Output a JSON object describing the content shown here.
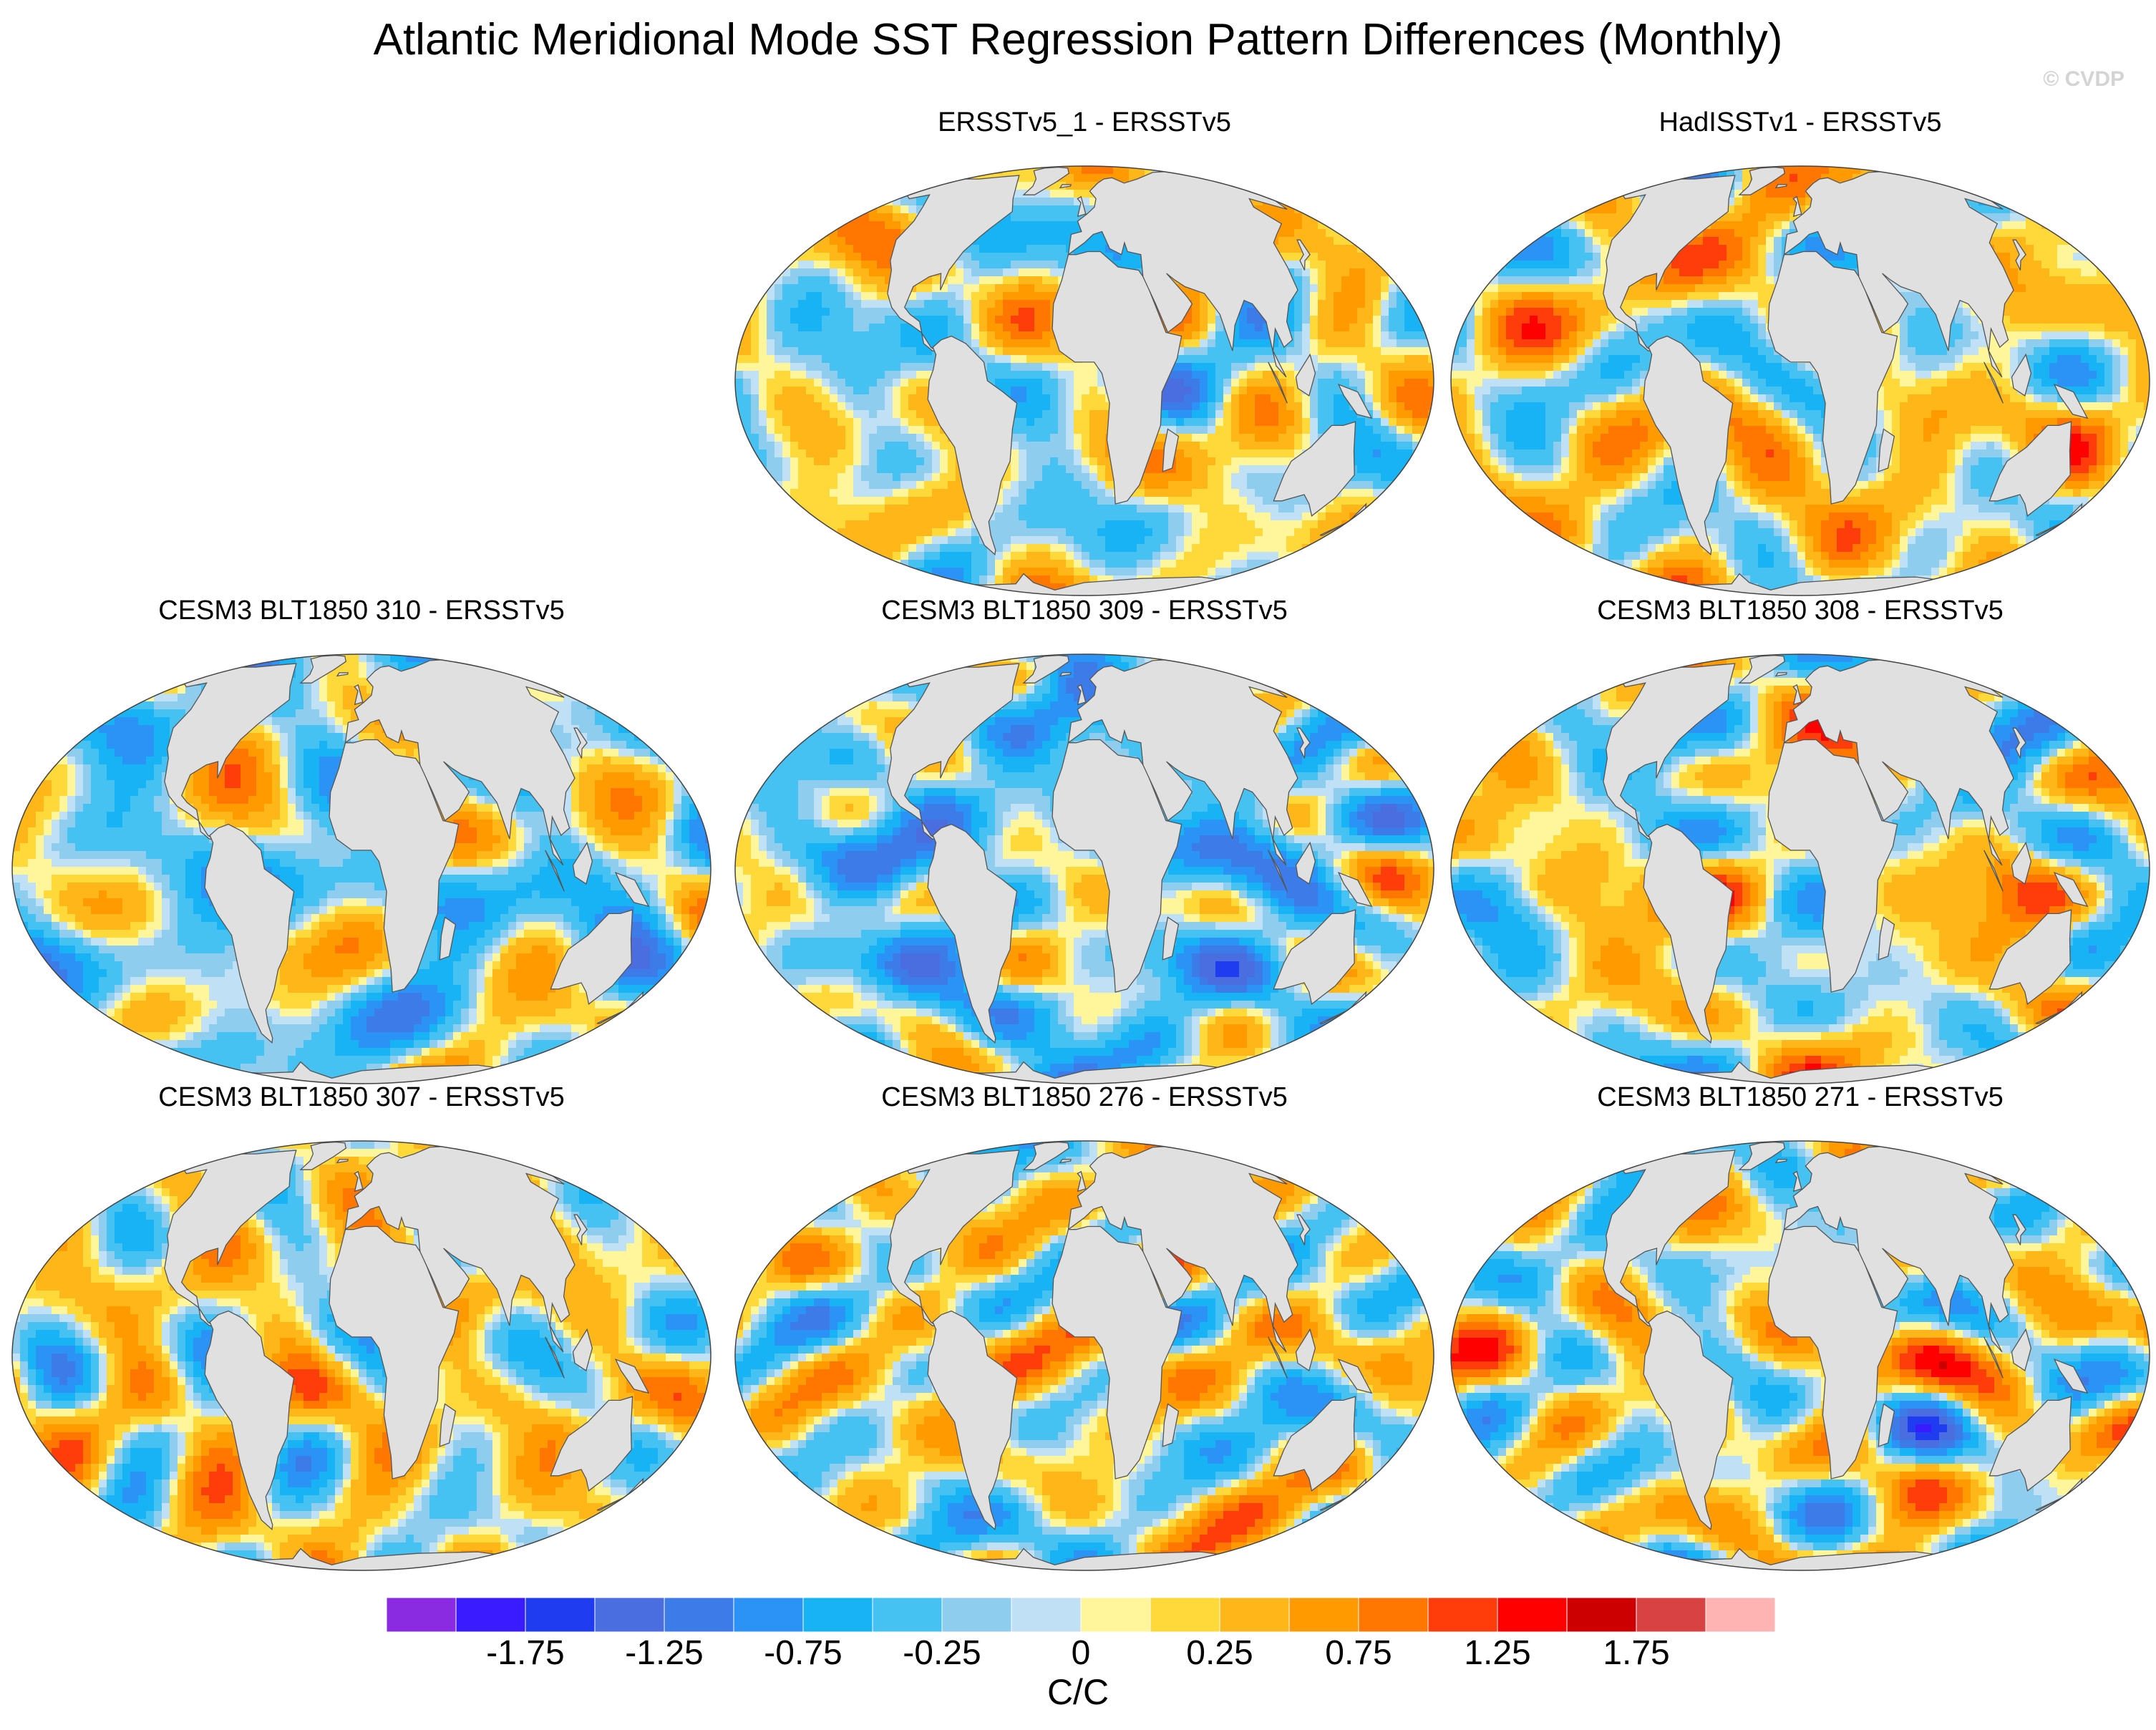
{
  "chart_data": {
    "type": "heatmap",
    "title": "Atlantic Meridional Mode SST Regression Pattern Differences (Monthly)",
    "watermark": "© CVDP",
    "projection": "global map (Robinson-like)",
    "units": "C/C",
    "colorbar": {
      "colors": [
        "#8a2be2",
        "#3a1aff",
        "#1f3cf0",
        "#4a6de0",
        "#3d7be8",
        "#2b93f5",
        "#17b3f5",
        "#45c2f2",
        "#8ecdee",
        "#bfe0f5",
        "#fff59b",
        "#ffd83a",
        "#ffb619",
        "#ff9a00",
        "#ff7600",
        "#ff3d0a",
        "#ff0000",
        "#cc0000",
        "#d94242",
        "#ffb4b4"
      ],
      "tick_labels": [
        "-1.75",
        "-1.25",
        "-0.75",
        "-0.25",
        "0",
        "0.25",
        "0.75",
        "1.25",
        "1.75"
      ],
      "levels": [
        -2,
        -1.75,
        -1.5,
        -1.25,
        -1,
        -0.75,
        -0.5,
        -0.25,
        -0.1,
        0,
        0.1,
        0.25,
        0.5,
        0.75,
        1,
        1.25,
        1.5,
        1.75,
        2
      ]
    },
    "panels": [
      {
        "title": "ERSSTv5_1 - ERSSTv5",
        "seed": 11,
        "bias": 0.0
      },
      {
        "title": "HadISSTv1 - ERSSTv5",
        "seed": 23,
        "bias": 0.15
      },
      {
        "title": "CESM3 BLT1850 310 - ERSSTv5",
        "seed": 37,
        "bias": -0.15
      },
      {
        "title": "CESM3 BLT1850 309 - ERSSTv5",
        "seed": 41,
        "bias": -0.3
      },
      {
        "title": "CESM3 BLT1850 308 - ERSSTv5",
        "seed": 53,
        "bias": 0.05
      },
      {
        "title": "CESM3 BLT1850 307 - ERSSTv5",
        "seed": 67,
        "bias": 0.1
      },
      {
        "title": "CESM3 BLT1850 276 - ERSSTv5",
        "seed": 71,
        "bias": 0.05
      },
      {
        "title": "CESM3 BLT1850 271 - ERSSTv5",
        "seed": 83,
        "bias": 0.05
      }
    ]
  }
}
